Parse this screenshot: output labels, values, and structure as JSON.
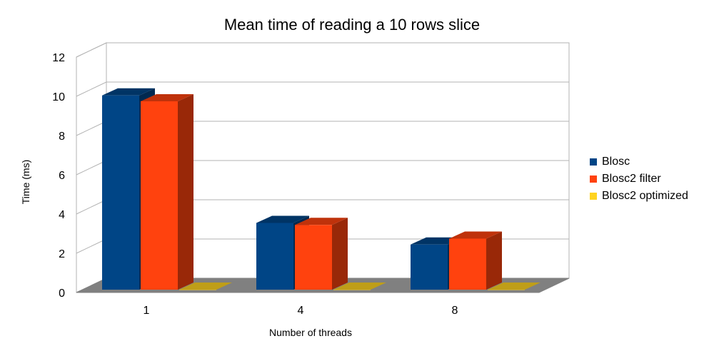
{
  "chart_data": {
    "type": "bar",
    "title": "Mean time of reading a 10 rows slice",
    "xlabel": "Number of threads",
    "ylabel": "Time (ms)",
    "categories": [
      "1",
      "4",
      "8"
    ],
    "ylim": [
      0,
      12
    ],
    "yticks": [
      0,
      2,
      4,
      6,
      8,
      10,
      12
    ],
    "grid": true,
    "three_d": true,
    "legend_position": "right",
    "series": [
      {
        "name": "Blosc",
        "values": [
          9.9,
          3.4,
          2.3
        ],
        "color": "#004586"
      },
      {
        "name": "Blosc2 filter",
        "values": [
          9.6,
          3.3,
          2.6
        ],
        "color": "#ff420e"
      },
      {
        "name": "Blosc2 optimized",
        "values": [
          0.0,
          0.0,
          0.0
        ],
        "color": "#ffd320"
      }
    ]
  }
}
